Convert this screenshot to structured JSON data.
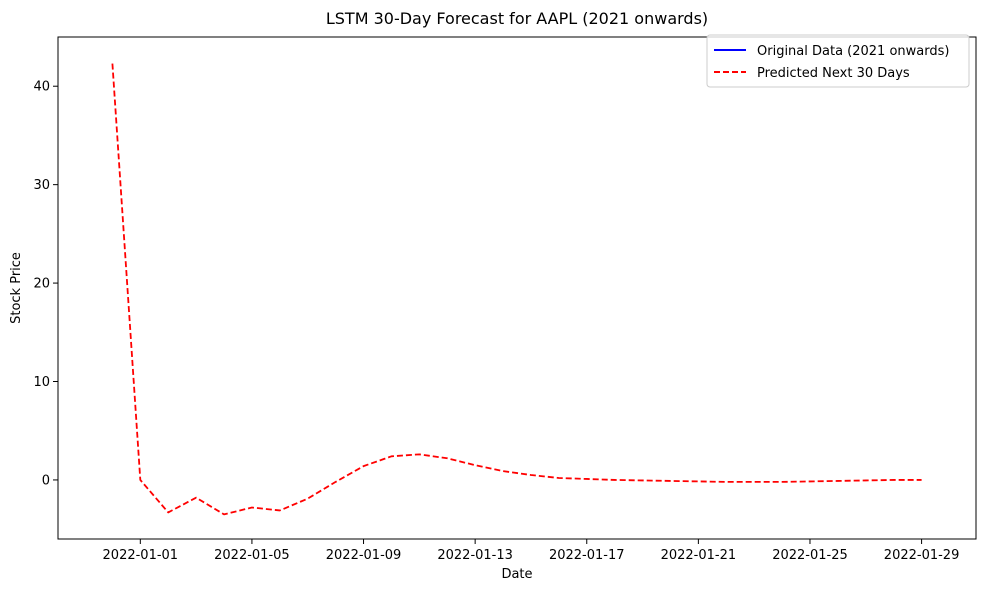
{
  "chart_data": {
    "type": "line",
    "title": "LSTM 30-Day Forecast for AAPL (2021 onwards)",
    "xlabel": "Date",
    "ylabel": "Stock Price",
    "xlim": [
      "2021-12-29T01:12:00",
      "2022-01-30T22:48:00"
    ],
    "ylim": [
      -6,
      45
    ],
    "x_ticks": [
      "2022-01-01",
      "2022-01-05",
      "2022-01-09",
      "2022-01-13",
      "2022-01-17",
      "2022-01-21",
      "2022-01-25",
      "2022-01-29"
    ],
    "y_ticks": [
      0,
      10,
      20,
      30,
      40
    ],
    "grid": false,
    "legend_position": "top-right",
    "series": [
      {
        "name": "Original Data (2021 onwards)",
        "color": "#0000ff",
        "style": "solid",
        "x": [],
        "y": []
      },
      {
        "name": "Predicted Next 30 Days",
        "color": "#ff0000",
        "style": "dashed",
        "x": [
          "2021-12-31",
          "2022-01-01",
          "2022-01-02",
          "2022-01-03",
          "2022-01-04",
          "2022-01-05",
          "2022-01-06",
          "2022-01-07",
          "2022-01-08",
          "2022-01-09",
          "2022-01-10",
          "2022-01-11",
          "2022-01-12",
          "2022-01-13",
          "2022-01-14",
          "2022-01-15",
          "2022-01-16",
          "2022-01-17",
          "2022-01-18",
          "2022-01-19",
          "2022-01-20",
          "2022-01-21",
          "2022-01-22",
          "2022-01-23",
          "2022-01-24",
          "2022-01-25",
          "2022-01-26",
          "2022-01-27",
          "2022-01-28",
          "2022-01-29"
        ],
        "y": [
          42.3,
          0.0,
          -3.3,
          -1.8,
          -3.5,
          -2.8,
          -3.1,
          -1.9,
          -0.2,
          1.4,
          2.4,
          2.6,
          2.2,
          1.5,
          0.9,
          0.5,
          0.2,
          0.1,
          0.0,
          -0.05,
          -0.1,
          -0.15,
          -0.2,
          -0.2,
          -0.2,
          -0.15,
          -0.1,
          -0.05,
          0.0,
          0.0
        ]
      }
    ]
  }
}
